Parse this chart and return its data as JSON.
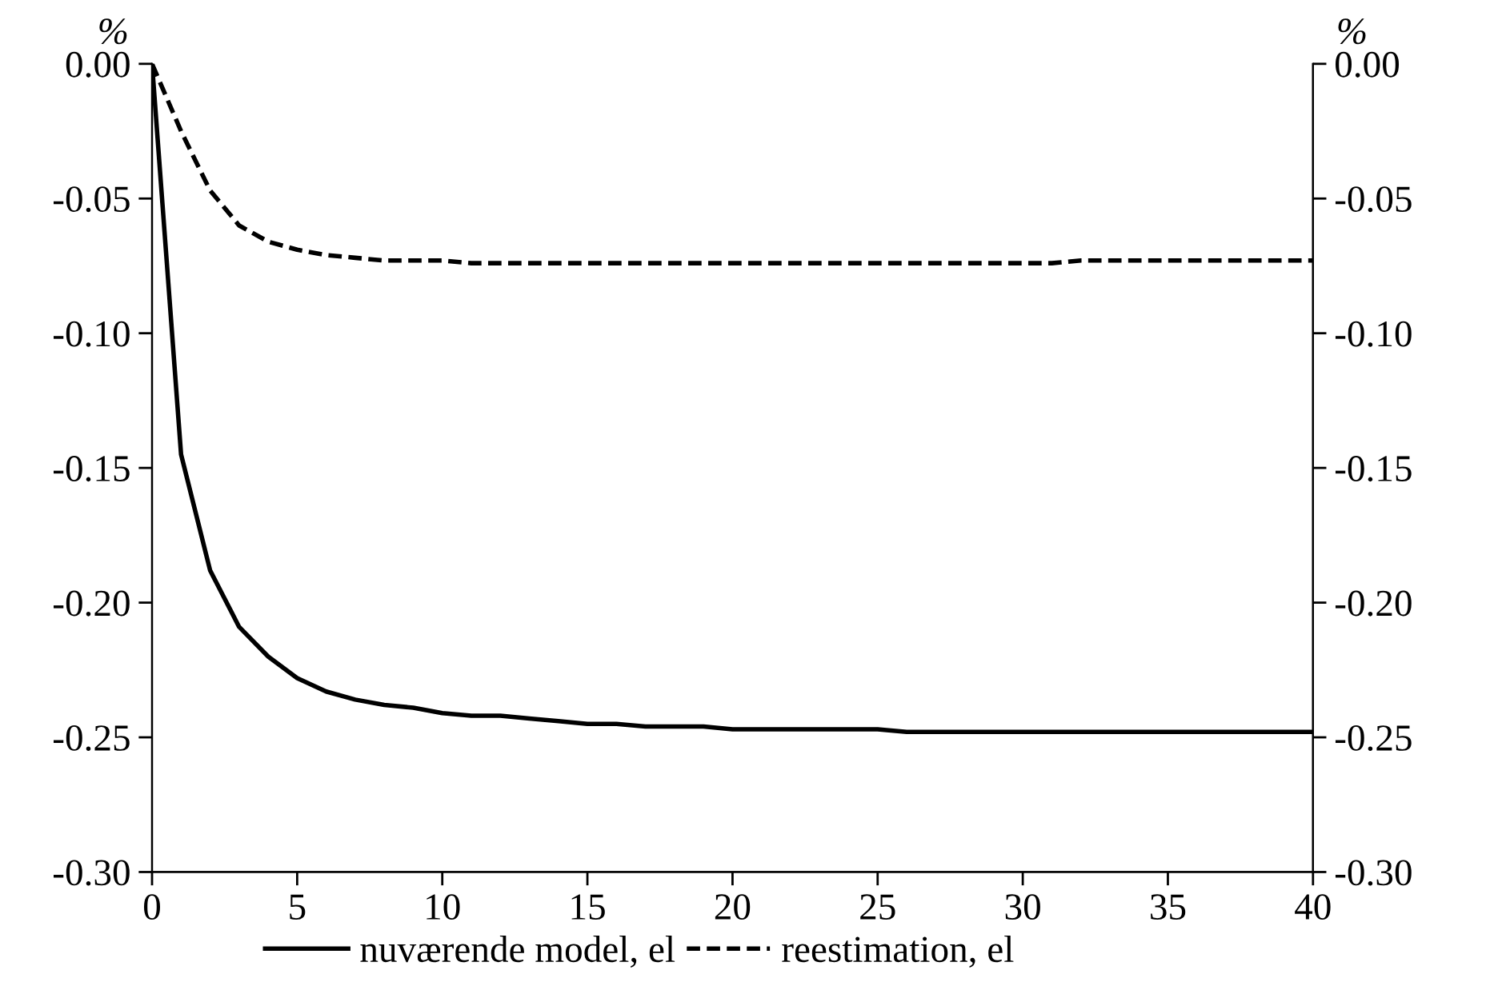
{
  "chart_data": {
    "type": "line",
    "x": [
      0,
      1,
      2,
      3,
      4,
      5,
      6,
      7,
      8,
      9,
      10,
      11,
      12,
      13,
      14,
      15,
      16,
      17,
      18,
      19,
      20,
      21,
      22,
      23,
      24,
      25,
      26,
      27,
      28,
      29,
      30,
      31,
      32,
      33,
      34,
      35,
      36,
      37,
      38,
      39,
      40
    ],
    "series": [
      {
        "name": "nuværende model, el",
        "color": "#000000",
        "line_style": "solid",
        "values": [
          0,
          -0.145,
          -0.188,
          -0.209,
          -0.22,
          -0.228,
          -0.233,
          -0.236,
          -0.238,
          -0.239,
          -0.241,
          -0.242,
          -0.242,
          -0.243,
          -0.244,
          -0.245,
          -0.245,
          -0.246,
          -0.246,
          -0.246,
          -0.247,
          -0.247,
          -0.247,
          -0.247,
          -0.247,
          -0.247,
          -0.248,
          -0.248,
          -0.248,
          -0.248,
          -0.248,
          -0.248,
          -0.248,
          -0.248,
          -0.248,
          -0.248,
          -0.248,
          -0.248,
          -0.248,
          -0.248,
          -0.248
        ]
      },
      {
        "name": "reestimation, el",
        "color": "#000000",
        "line_style": "dashed",
        "values": [
          0,
          -0.025,
          -0.047,
          -0.06,
          -0.066,
          -0.069,
          -0.071,
          -0.072,
          -0.073,
          -0.073,
          -0.073,
          -0.074,
          -0.074,
          -0.074,
          -0.074,
          -0.074,
          -0.074,
          -0.074,
          -0.074,
          -0.074,
          -0.074,
          -0.074,
          -0.074,
          -0.074,
          -0.074,
          -0.074,
          -0.074,
          -0.074,
          -0.074,
          -0.074,
          -0.074,
          -0.074,
          -0.073,
          -0.073,
          -0.073,
          -0.073,
          -0.073,
          -0.073,
          -0.073,
          -0.073,
          -0.073
        ]
      }
    ],
    "ylabel": "%",
    "y2label": "%",
    "xlim": [
      0,
      40
    ],
    "xticks": [
      0,
      5,
      10,
      15,
      20,
      25,
      30,
      35,
      40
    ],
    "ylim": [
      -0.3,
      0
    ],
    "yticks": [
      {
        "value": -0.3,
        "label": "-0.30"
      },
      {
        "value": -0.25,
        "label": "-0.25"
      },
      {
        "value": -0.2,
        "label": "-0.20"
      },
      {
        "value": -0.15,
        "label": "-0.15"
      },
      {
        "value": -0.1,
        "label": "-0.10"
      },
      {
        "value": -0.05,
        "label": "-0.05"
      },
      {
        "value": 0,
        "label": "0.00"
      }
    ],
    "y2lim": [
      -0.3,
      0
    ],
    "y2ticks": [
      {
        "value": -0.3,
        "label": "-0.30"
      },
      {
        "value": -0.25,
        "label": "-0.25"
      },
      {
        "value": -0.2,
        "label": "-0.20"
      },
      {
        "value": -0.15,
        "label": "-0.15"
      },
      {
        "value": -0.1,
        "label": "-0.10"
      },
      {
        "value": -0.05,
        "label": "-0.05"
      },
      {
        "value": 0,
        "label": "0.00"
      }
    ],
    "legend": "bottom",
    "grid": false,
    "marker": "none"
  }
}
